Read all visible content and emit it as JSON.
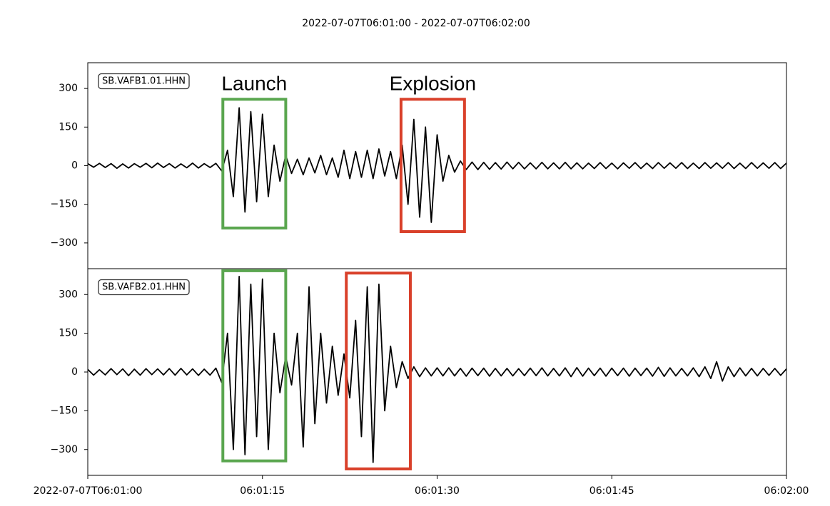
{
  "chart_data": [
    {
      "type": "line",
      "title": "2022-07-07T06:01:00  -  2022-07-07T06:02:00",
      "x": [
        0,
        0.5,
        1,
        1.5,
        2,
        2.5,
        3,
        3.5,
        4,
        4.5,
        5,
        5.5,
        6,
        6.5,
        7,
        7.5,
        8,
        8.5,
        9,
        9.5,
        10,
        10.5,
        11,
        11.5,
        12,
        12.5,
        13,
        13.5,
        14,
        14.5,
        15,
        15.5,
        16,
        16.5,
        17,
        17.5,
        18,
        18.5,
        19,
        19.5,
        20,
        20.5,
        21,
        21.5,
        22,
        22.5,
        23,
        23.5,
        24,
        24.5,
        25,
        25.5,
        26,
        26.5,
        27,
        27.5,
        28,
        28.5,
        29,
        29.5,
        30,
        30.5,
        31,
        31.5,
        32,
        32.5,
        33,
        33.5,
        34,
        34.5,
        35,
        35.5,
        36,
        36.5,
        37,
        37.5,
        38,
        38.5,
        39,
        39.5,
        40,
        40.5,
        41,
        41.5,
        42,
        42.5,
        43,
        43.5,
        44,
        44.5,
        45,
        45.5,
        46,
        46.5,
        47,
        47.5,
        48,
        48.5,
        49,
        49.5,
        50,
        50.5,
        51,
        51.5,
        52,
        52.5,
        53,
        53.5,
        54,
        54.5,
        55,
        55.5,
        56,
        56.5,
        57,
        57.5,
        58,
        58.5,
        59,
        59.5,
        60
      ],
      "series": [
        {
          "name": "SB.VAFB1.01.HHN",
          "color": "#000000",
          "values": [
            8,
            -6,
            9,
            -7,
            8,
            -10,
            7,
            -9,
            8,
            -6,
            9,
            -8,
            10,
            -7,
            8,
            -9,
            7,
            -8,
            10,
            -9,
            8,
            -7,
            9,
            -20,
            60,
            -120,
            225,
            -180,
            210,
            -140,
            200,
            -120,
            80,
            -60,
            40,
            -30,
            25,
            -35,
            30,
            -28,
            40,
            -35,
            30,
            -45,
            60,
            -50,
            55,
            -45,
            60,
            -50,
            65,
            -40,
            55,
            -50,
            80,
            -150,
            180,
            -200,
            150,
            -220,
            120,
            -60,
            40,
            -25,
            18,
            -15,
            14,
            -15,
            13,
            -14,
            12,
            -13,
            14,
            -12,
            13,
            -12,
            11,
            -12,
            13,
            -12,
            11,
            -12,
            13,
            -12,
            11,
            -12,
            10,
            -11,
            12,
            -11,
            10,
            -12,
            11,
            -10,
            12,
            -11,
            10,
            -11,
            12,
            -10,
            11,
            -10,
            12,
            -11,
            10,
            -11,
            12,
            -10,
            11,
            -10,
            12,
            -11,
            10,
            -11,
            12,
            -10,
            11,
            -10,
            12,
            -11,
            10
          ]
        }
      ],
      "xlim": [
        0,
        60
      ],
      "ylim": [
        -400,
        400
      ],
      "yticks": [
        {
          "value": -300,
          "label": "−300"
        },
        {
          "value": -150,
          "label": "−150"
        },
        0,
        150,
        300
      ],
      "annotations": [
        {
          "label": "Launch",
          "color": "#5aa64f",
          "x": [
            11.6,
            17
          ],
          "y": [
            -242,
            258
          ]
        },
        {
          "label": "Explosion",
          "color": "#d9402a",
          "x": [
            26.9,
            32.35
          ],
          "y": [
            -256,
            258
          ]
        }
      ]
    },
    {
      "type": "line",
      "x": [
        0,
        0.5,
        1,
        1.5,
        2,
        2.5,
        3,
        3.5,
        4,
        4.5,
        5,
        5.5,
        6,
        6.5,
        7,
        7.5,
        8,
        8.5,
        9,
        9.5,
        10,
        10.5,
        11,
        11.5,
        12,
        12.5,
        13,
        13.5,
        14,
        14.5,
        15,
        15.5,
        16,
        16.5,
        17,
        17.5,
        18,
        18.5,
        19,
        19.5,
        20,
        20.5,
        21,
        21.5,
        22,
        22.5,
        23,
        23.5,
        24,
        24.5,
        25,
        25.5,
        26,
        26.5,
        27,
        27.5,
        28,
        28.5,
        29,
        29.5,
        30,
        30.5,
        31,
        31.5,
        32,
        32.5,
        33,
        33.5,
        34,
        34.5,
        35,
        35.5,
        36,
        36.5,
        37,
        37.5,
        38,
        38.5,
        39,
        39.5,
        40,
        40.5,
        41,
        41.5,
        42,
        42.5,
        43,
        43.5,
        44,
        44.5,
        45,
        45.5,
        46,
        46.5,
        47,
        47.5,
        48,
        48.5,
        49,
        49.5,
        50,
        50.5,
        51,
        51.5,
        52,
        52.5,
        53,
        53.5,
        54,
        54.5,
        55,
        55.5,
        56,
        56.5,
        57,
        57.5,
        58,
        58.5,
        59,
        59.5,
        60
      ],
      "series": [
        {
          "name": "SB.VAFB2.01.HHN",
          "color": "#000000",
          "values": [
            10,
            -12,
            9,
            -11,
            13,
            -10,
            12,
            -14,
            11,
            -12,
            13,
            -10,
            12,
            -11,
            13,
            -12,
            14,
            -11,
            12,
            -13,
            11,
            -12,
            15,
            -40,
            150,
            -300,
            370,
            -320,
            340,
            -250,
            360,
            -300,
            150,
            -80,
            60,
            -50,
            150,
            -290,
            330,
            -200,
            150,
            -120,
            100,
            -90,
            70,
            -100,
            200,
            -250,
            330,
            -350,
            340,
            -150,
            100,
            -60,
            40,
            -25,
            20,
            -18,
            16,
            -15,
            16,
            -15,
            16,
            -15,
            14,
            -16,
            15,
            -14,
            15,
            -16,
            14,
            -15,
            14,
            -15,
            13,
            -14,
            15,
            -14,
            16,
            -15,
            14,
            -15,
            16,
            -18,
            17,
            -16,
            15,
            -14,
            15,
            -16,
            15,
            -14,
            15,
            -16,
            15,
            -14,
            15,
            -16,
            18,
            -17,
            16,
            -15,
            14,
            -15,
            16,
            -18,
            20,
            -25,
            40,
            -35,
            20,
            -18,
            16,
            -15,
            14,
            -15,
            14,
            -13,
            14,
            -13,
            12
          ]
        }
      ],
      "xlim": [
        0,
        60
      ],
      "ylim": [
        -400,
        400
      ],
      "xticks": [
        {
          "value": 0,
          "label": "2022-07-07T06:01:00"
        },
        {
          "value": 15,
          "label": "06:01:15"
        },
        {
          "value": 30,
          "label": "06:01:30"
        },
        {
          "value": 45,
          "label": "06:01:45"
        },
        {
          "value": 60,
          "label": "06:02:00"
        }
      ],
      "yticks": [
        {
          "value": -300,
          "label": "−300"
        },
        {
          "value": -150,
          "label": "−150"
        },
        0,
        150,
        300
      ],
      "annotations": [
        {
          "color": "#5aa64f",
          "x": [
            11.6,
            17
          ],
          "y": [
            -344,
            392
          ]
        },
        {
          "color": "#d9402a",
          "x": [
            22.2,
            27.7
          ],
          "y": [
            -375,
            383
          ]
        }
      ]
    }
  ]
}
